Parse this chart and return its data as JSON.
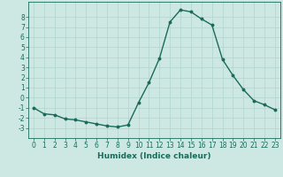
{
  "x": [
    0,
    1,
    2,
    3,
    4,
    5,
    6,
    7,
    8,
    9,
    10,
    11,
    12,
    13,
    14,
    15,
    16,
    17,
    18,
    19,
    20,
    21,
    22,
    23
  ],
  "y": [
    -1,
    -1.6,
    -1.7,
    -2.1,
    -2.2,
    -2.4,
    -2.6,
    -2.8,
    -2.9,
    -2.7,
    -0.5,
    1.5,
    3.9,
    7.5,
    8.7,
    8.5,
    7.8,
    7.2,
    3.8,
    2.2,
    0.8,
    -0.3,
    -0.7,
    -1.2
  ],
  "line_color": "#1a6b5a",
  "marker": "o",
  "markersize": 1.8,
  "linewidth": 1.0,
  "xlabel": "Humidex (Indice chaleur)",
  "xlim": [
    -0.5,
    23.5
  ],
  "ylim": [
    -4,
    9.5
  ],
  "yticks": [
    -3,
    -2,
    -1,
    0,
    1,
    2,
    3,
    4,
    5,
    6,
    7,
    8
  ],
  "xticks": [
    0,
    1,
    2,
    3,
    4,
    5,
    6,
    7,
    8,
    9,
    10,
    11,
    12,
    13,
    14,
    15,
    16,
    17,
    18,
    19,
    20,
    21,
    22,
    23
  ],
  "bg_color": "#cde8e2",
  "grid_color": "#b0d4cc",
  "tick_fontsize": 5.5,
  "label_fontsize": 6.5
}
